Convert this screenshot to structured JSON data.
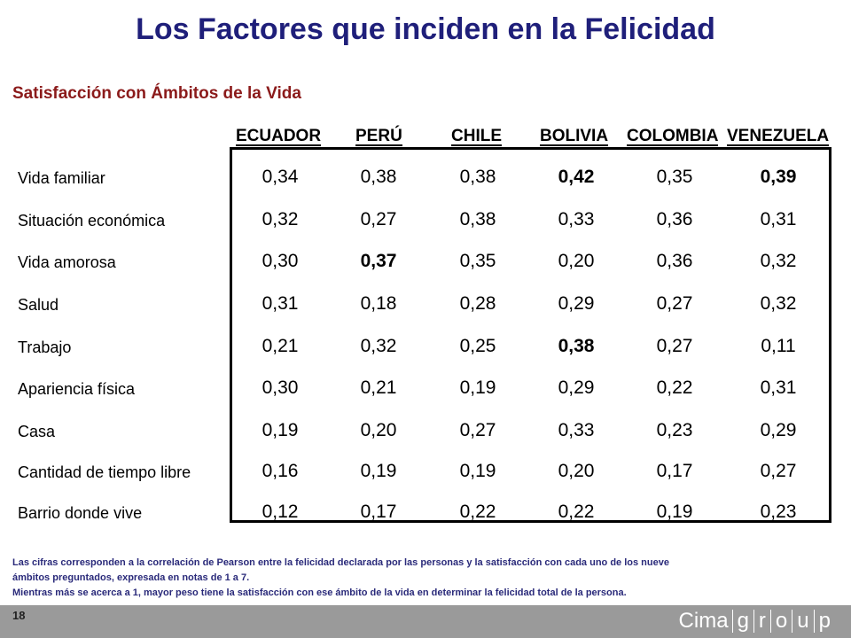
{
  "title": "Los Factores que inciden en la Felicidad",
  "subtitle": "Satisfacción con Ámbitos de la Vida",
  "chart_data": {
    "type": "table",
    "columns": [
      "ECUADOR",
      "PERÚ",
      "CHILE",
      "BOLIVIA",
      "COLOMBIA",
      "VENEZUELA"
    ],
    "rows": [
      {
        "label": "Vida familiar",
        "values": [
          "0,34",
          "0,38",
          "0,38",
          "0,42",
          "0,35",
          "0,39"
        ],
        "bold": [
          false,
          false,
          false,
          true,
          false,
          true
        ]
      },
      {
        "label": "Situación económica",
        "values": [
          "0,32",
          "0,27",
          "0,38",
          "0,33",
          "0,36",
          "0,31"
        ],
        "bold": [
          false,
          false,
          false,
          false,
          false,
          false
        ]
      },
      {
        "label": "Vida amorosa",
        "values": [
          "0,30",
          "0,37",
          "0,35",
          "0,20",
          "0,36",
          "0,32"
        ],
        "bold": [
          false,
          true,
          false,
          false,
          false,
          false
        ]
      },
      {
        "label": "Salud",
        "values": [
          "0,31",
          "0,18",
          "0,28",
          "0,29",
          "0,27",
          "0,32"
        ],
        "bold": [
          false,
          false,
          false,
          false,
          false,
          false
        ]
      },
      {
        "label": "Trabajo",
        "values": [
          "0,21",
          "0,32",
          "0,25",
          "0,38",
          "0,27",
          "0,11"
        ],
        "bold": [
          false,
          false,
          false,
          true,
          false,
          false
        ]
      },
      {
        "label": "Apariencia física",
        "values": [
          "0,30",
          "0,21",
          "0,19",
          "0,29",
          "0,22",
          "0,31"
        ],
        "bold": [
          false,
          false,
          false,
          false,
          false,
          false
        ]
      },
      {
        "label": "Casa",
        "values": [
          "0,19",
          "0,20",
          "0,27",
          "0,33",
          "0,23",
          "0,29"
        ],
        "bold": [
          false,
          false,
          false,
          false,
          false,
          false
        ]
      },
      {
        "label": "Cantidad de tiempo libre",
        "values": [
          "0,16",
          "0,19",
          "0,19",
          "0,20",
          "0,17",
          "0,27"
        ],
        "bold": [
          false,
          false,
          false,
          false,
          false,
          false
        ]
      },
      {
        "label": "Barrio donde vive",
        "values": [
          "0,12",
          "0,17",
          "0,22",
          "0,22",
          "0,19",
          "0,23"
        ],
        "bold": [
          false,
          false,
          false,
          false,
          false,
          false
        ]
      }
    ]
  },
  "footnote": {
    "line1": "Las cifras corresponden  a la correlación de Pearson entre la felicidad declarada por las personas y la satisfacción con cada uno de los nueve",
    "line2": "ámbitos preguntados, expresada en notas de 1 a 7.",
    "line3": "Mientras más se acerca a 1, mayor peso tiene la satisfacción  con ese ámbito de la vida en determinar la felicidad total de la persona."
  },
  "footer": {
    "page_number": "18",
    "logo_main": "Cima",
    "logo_letters": [
      "g",
      "r",
      "o",
      "u",
      "p"
    ]
  },
  "colors": {
    "title": "#1f1f7a",
    "subtitle": "#8b1a1a",
    "footnote": "#2a2a7a",
    "footer_bar": "#9a9a9a"
  }
}
